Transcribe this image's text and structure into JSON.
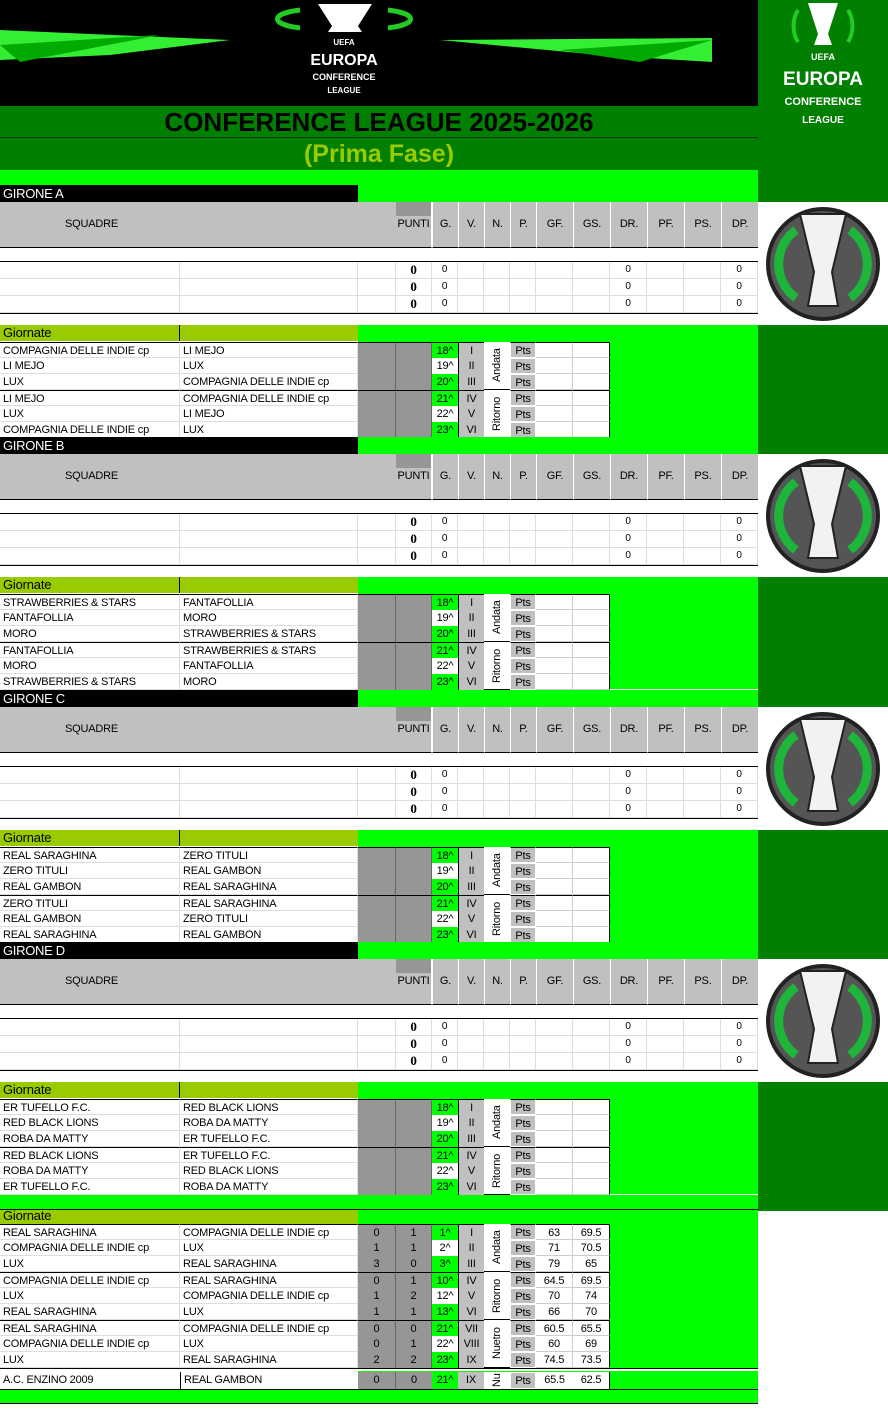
{
  "header": {
    "logo_text": [
      "UEFA",
      "EUROPA",
      "CONFERENCE",
      "LEAGUE"
    ],
    "title": "CONFERENCE LEAGUE 2025-2026",
    "subtitle": "(Prima Fase)"
  },
  "colors": {
    "lime": "#00ff00",
    "dark_green": "#007f00",
    "olive": "#99cc00",
    "grey": "#c0c0c0",
    "dark_grey": "#969696"
  },
  "table_headers": {
    "squadre": "SQUADRE",
    "punti": "PUNTI",
    "cols": [
      "G.",
      "V.",
      "N.",
      "P.",
      "GF.",
      "GS.",
      "DR.",
      "PF.",
      "PS.",
      "DP."
    ]
  },
  "giornate_label": "Giornate",
  "pts_label": "Pts",
  "phases": {
    "andata": "Andata",
    "ritorno": "Ritorno",
    "nuetro": "Nuetro",
    "nu": "Nu"
  },
  "groups": [
    {
      "name": "GIRONE A",
      "rows": [
        {
          "punti": "0",
          "g": "0",
          "dr": "0",
          "dp": "0"
        },
        {
          "punti": "0",
          "g": "0",
          "dr": "0",
          "dp": "0"
        },
        {
          "punti": "0",
          "g": "0",
          "dr": "0",
          "dp": "0"
        }
      ],
      "matches": [
        {
          "home": "COMPAGNIA DELLE INDIE cp",
          "away": " LI MEJO",
          "day": "18^",
          "round": "I"
        },
        {
          "home": " LI MEJO",
          "away": "LUX",
          "day": "19^",
          "round": "II"
        },
        {
          "home": "LUX",
          "away": "COMPAGNIA DELLE INDIE cp",
          "day": "20^",
          "round": "III"
        },
        {
          "home": " LI MEJO",
          "away": "COMPAGNIA DELLE INDIE cp",
          "day": "21^",
          "round": "IV"
        },
        {
          "home": "LUX",
          "away": " LI MEJO",
          "day": "22^",
          "round": "V"
        },
        {
          "home": "COMPAGNIA DELLE INDIE cp",
          "away": "LUX",
          "day": "23^",
          "round": "VI"
        }
      ]
    },
    {
      "name": "GIRONE B",
      "rows": [
        {
          "punti": "0",
          "g": "0",
          "dr": "0",
          "dp": "0"
        },
        {
          "punti": "0",
          "g": "0",
          "dr": "0",
          "dp": "0"
        },
        {
          "punti": "0",
          "g": "0",
          "dr": "0",
          "dp": "0"
        }
      ],
      "matches": [
        {
          "home": "STRAWBERRIES & STARS",
          "away": "FANTAFOLLIA",
          "day": "18^",
          "round": "I"
        },
        {
          "home": "FANTAFOLLIA",
          "away": "MORO",
          "day": "19^",
          "round": "II"
        },
        {
          "home": "MORO",
          "away": "STRAWBERRIES & STARS",
          "day": "20^",
          "round": "III"
        },
        {
          "home": "FANTAFOLLIA",
          "away": "STRAWBERRIES & STARS",
          "day": "21^",
          "round": "IV"
        },
        {
          "home": "MORO",
          "away": "FANTAFOLLIA",
          "day": "22^",
          "round": "V"
        },
        {
          "home": "STRAWBERRIES & STARS",
          "away": "MORO",
          "day": "23^",
          "round": "VI"
        }
      ]
    },
    {
      "name": "GIRONE C",
      "rows": [
        {
          "punti": "0",
          "g": "0",
          "dr": "0",
          "dp": "0"
        },
        {
          "punti": "0",
          "g": "0",
          "dr": "0",
          "dp": "0"
        },
        {
          "punti": "0",
          "g": "0",
          "dr": "0",
          "dp": "0"
        }
      ],
      "matches": [
        {
          "home": "REAL SARAGHINA",
          "away": "ZERO TITULI",
          "day": "18^",
          "round": "I"
        },
        {
          "home": "ZERO TITULI",
          "away": "REAL GAMBON",
          "day": "19^",
          "round": "II"
        },
        {
          "home": "REAL GAMBON",
          "away": "REAL SARAGHINA",
          "day": "20^",
          "round": "III"
        },
        {
          "home": "ZERO TITULI",
          "away": "REAL SARAGHINA",
          "day": "21^",
          "round": "IV"
        },
        {
          "home": "REAL GAMBON",
          "away": "ZERO TITULI",
          "day": "22^",
          "round": "V"
        },
        {
          "home": "REAL SARAGHINA",
          "away": "REAL GAMBON",
          "day": "23^",
          "round": "VI"
        }
      ]
    },
    {
      "name": "GIRONE D",
      "rows": [
        {
          "punti": "0",
          "g": "0",
          "dr": "0",
          "dp": "0"
        },
        {
          "punti": "0",
          "g": "0",
          "dr": "0",
          "dp": "0"
        },
        {
          "punti": "0",
          "g": "0",
          "dr": "0",
          "dp": "0"
        }
      ],
      "matches": [
        {
          "home": "ER TUFELLO F.C.",
          "away": "RED BLACK LIONS",
          "day": "18^",
          "round": "I"
        },
        {
          "home": "RED BLACK LIONS",
          "away": "ROBA DA MATTY",
          "day": "19^",
          "round": "II"
        },
        {
          "home": "ROBA DA MATTY",
          "away": "ER TUFELLO F.C.",
          "day": "20^",
          "round": "III"
        },
        {
          "home": "RED BLACK LIONS",
          "away": "ER TUFELLO F.C.",
          "day": "21^",
          "round": "IV"
        },
        {
          "home": "ROBA DA MATTY",
          "away": "RED BLACK LIONS",
          "day": "22^",
          "round": "V"
        },
        {
          "home": "ER TUFELLO F.C.",
          "away": "ROBA DA MATTY",
          "day": "23^",
          "round": "VI"
        }
      ]
    }
  ],
  "final": {
    "matches": [
      {
        "home": "REAL SARAGHINA",
        "away": "COMPAGNIA DELLE INDIE cp",
        "s1": "0",
        "s2": "1",
        "day": "1^",
        "round": "I",
        "p1": "63",
        "p2": "69.5"
      },
      {
        "home": "COMPAGNIA DELLE INDIE cp",
        "away": "LUX",
        "s1": "1",
        "s2": "1",
        "day": "2^",
        "round": "II",
        "p1": "71",
        "p2": "70.5"
      },
      {
        "home": "LUX",
        "away": "REAL SARAGHINA",
        "s1": "3",
        "s2": "0",
        "day": "3^",
        "round": "III",
        "p1": "79",
        "p2": "65"
      },
      {
        "home": "COMPAGNIA DELLE INDIE cp",
        "away": "REAL SARAGHINA",
        "s1": "0",
        "s2": "1",
        "day": "10^",
        "round": "IV",
        "p1": "64.5",
        "p2": "69.5"
      },
      {
        "home": "LUX",
        "away": "COMPAGNIA DELLE INDIE cp",
        "s1": "1",
        "s2": "2",
        "day": "12^",
        "round": "V",
        "p1": "70",
        "p2": "74"
      },
      {
        "home": "REAL SARAGHINA",
        "away": "LUX",
        "s1": "1",
        "s2": "1",
        "day": "13^",
        "round": "VI",
        "p1": "66",
        "p2": "70"
      },
      {
        "home": "REAL SARAGHINA",
        "away": "COMPAGNIA DELLE INDIE cp",
        "s1": "0",
        "s2": "0",
        "day": "21^",
        "round": "VII",
        "p1": "60.5",
        "p2": "65.5"
      },
      {
        "home": "COMPAGNIA DELLE INDIE cp",
        "away": "LUX",
        "s1": "0",
        "s2": "1",
        "day": "22^",
        "round": "VIII",
        "p1": "60",
        "p2": "69"
      },
      {
        "home": "LUX",
        "away": "REAL SARAGHINA",
        "s1": "2",
        "s2": "2",
        "day": "23^",
        "round": "IX",
        "p1": "74.5",
        "p2": "73.5"
      }
    ],
    "extra": {
      "home": "A.C. ENZINO 2009",
      "away": "REAL GAMBON",
      "s1": "0",
      "s2": "0",
      "day": "21^",
      "round": "IX",
      "p1": "65.5",
      "p2": "62.5"
    }
  }
}
